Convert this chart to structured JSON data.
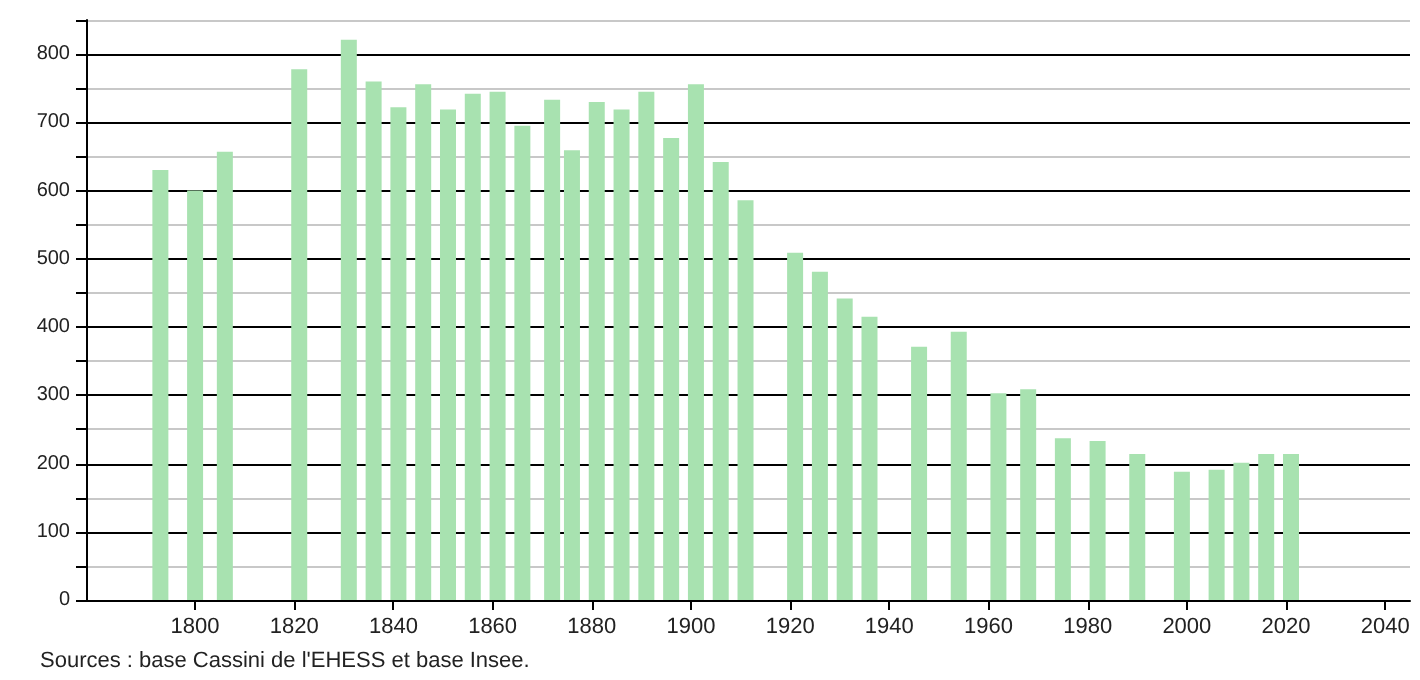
{
  "chart_data": {
    "type": "bar",
    "x": [
      1793,
      1800,
      1806,
      1821,
      1831,
      1836,
      1841,
      1846,
      1851,
      1856,
      1861,
      1866,
      1872,
      1876,
      1881,
      1886,
      1891,
      1896,
      1901,
      1906,
      1911,
      1921,
      1926,
      1931,
      1936,
      1946,
      1954,
      1962,
      1968,
      1975,
      1982,
      1990,
      1999,
      2006,
      2011,
      2016,
      2021
    ],
    "values": [
      630,
      600,
      657,
      778,
      821,
      760,
      722,
      756,
      719,
      742,
      745,
      695,
      733,
      659,
      730,
      719,
      745,
      677,
      756,
      642,
      586,
      509,
      481,
      442,
      415,
      371,
      393,
      303,
      309,
      237,
      233,
      214,
      188,
      191,
      201,
      214,
      214
    ],
    "color": "#a8e2b0",
    "xlim": [
      1778,
      2045
    ],
    "xticks": [
      1800,
      1820,
      1840,
      1860,
      1880,
      1900,
      1920,
      1940,
      1960,
      1980,
      2000,
      2020,
      2040
    ],
    "ylim": [
      0,
      850
    ],
    "yticks": [
      0,
      {
        "value": 50,
        "label": null
      },
      100,
      {
        "value": 150,
        "label": null
      },
      200,
      {
        "value": 250,
        "label": null
      },
      300,
      {
        "value": 350,
        "label": null
      },
      400,
      {
        "value": 450,
        "label": null
      },
      500,
      {
        "value": 550,
        "label": null
      },
      600,
      {
        "value": 650,
        "label": null
      },
      700,
      {
        "value": 750,
        "label": null
      },
      800,
      {
        "value": 850,
        "label": null
      }
    ],
    "grid": "y",
    "annotations": [
      "Sources : base Cassini de l'EHESS et base Insee."
    ]
  }
}
